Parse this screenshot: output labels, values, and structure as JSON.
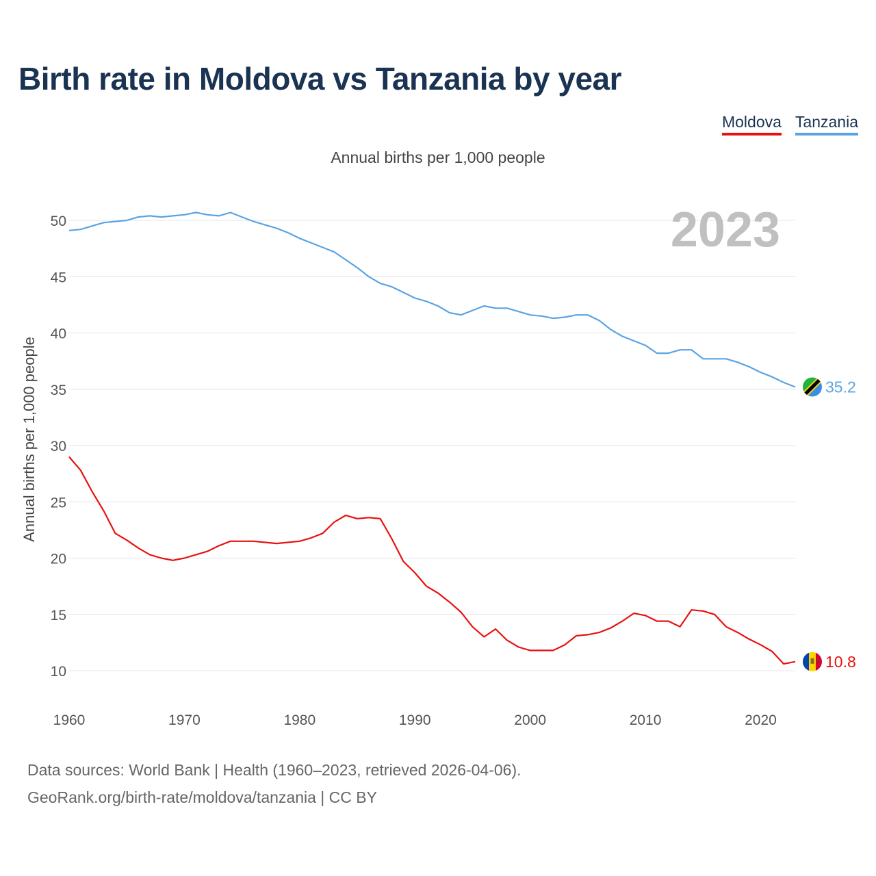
{
  "title": "Birth rate in Moldova vs Tanzania by year",
  "legend": {
    "moldova": "Moldova",
    "tanzania": "Tanzania"
  },
  "subtitle": "Annual births per 1,000 people",
  "footer": {
    "line1": "Data sources: World Bank | Health (1960–2023, retrieved 2026-04-06).",
    "line2": "GeoRank.org/birth-rate/moldova/tanzania | CC BY"
  },
  "chart_data": {
    "type": "line",
    "title": "Birth rate in Moldova vs Tanzania by year",
    "ylabel": "Annual births per 1,000 people",
    "xlabel": "",
    "year_label": "2023",
    "xlim": [
      1960,
      2023
    ],
    "ylim": [
      7,
      53
    ],
    "xticks": [
      1960,
      1970,
      1980,
      1990,
      2000,
      2010,
      2020
    ],
    "yticks": [
      10,
      15,
      20,
      25,
      30,
      35,
      40,
      45,
      50
    ],
    "grid": true,
    "x": [
      1960,
      1961,
      1962,
      1963,
      1964,
      1965,
      1966,
      1967,
      1968,
      1969,
      1970,
      1971,
      1972,
      1973,
      1974,
      1975,
      1976,
      1977,
      1978,
      1979,
      1980,
      1981,
      1982,
      1983,
      1984,
      1985,
      1986,
      1987,
      1988,
      1989,
      1990,
      1991,
      1992,
      1993,
      1994,
      1995,
      1996,
      1997,
      1998,
      1999,
      2000,
      2001,
      2002,
      2003,
      2004,
      2005,
      2006,
      2007,
      2008,
      2009,
      2010,
      2011,
      2012,
      2013,
      2014,
      2015,
      2016,
      2017,
      2018,
      2019,
      2020,
      2021,
      2022,
      2023
    ],
    "series": [
      {
        "name": "Tanzania",
        "color": "#5aa3e3",
        "end_label": "35.2",
        "values": [
          49.1,
          49.2,
          49.5,
          49.8,
          49.9,
          50.0,
          50.3,
          50.4,
          50.3,
          50.4,
          50.5,
          50.7,
          50.5,
          50.4,
          50.7,
          50.3,
          49.9,
          49.6,
          49.3,
          48.9,
          48.4,
          48.0,
          47.6,
          47.2,
          46.5,
          45.8,
          45.0,
          44.4,
          44.1,
          43.6,
          43.1,
          42.8,
          42.4,
          41.8,
          41.6,
          42.0,
          42.4,
          42.2,
          42.2,
          41.9,
          41.6,
          41.5,
          41.3,
          41.4,
          41.6,
          41.6,
          41.1,
          40.3,
          39.7,
          39.3,
          38.9,
          38.2,
          38.2,
          38.5,
          38.5,
          37.7,
          37.7,
          37.7,
          37.4,
          37.0,
          36.5,
          36.1,
          35.6,
          35.2
        ]
      },
      {
        "name": "Moldova",
        "color": "#e8110f",
        "end_label": "10.8",
        "values": [
          29.0,
          27.8,
          25.9,
          24.2,
          22.2,
          21.6,
          20.9,
          20.3,
          20.0,
          19.8,
          20.0,
          20.3,
          20.6,
          21.1,
          21.5,
          21.5,
          21.5,
          21.4,
          21.3,
          21.4,
          21.5,
          21.8,
          22.2,
          23.2,
          23.8,
          23.5,
          23.6,
          23.5,
          21.7,
          19.7,
          18.7,
          17.5,
          16.9,
          16.1,
          15.2,
          13.9,
          13.0,
          13.7,
          12.7,
          12.1,
          11.8,
          11.8,
          11.8,
          12.3,
          13.1,
          13.2,
          13.4,
          13.8,
          14.4,
          15.1,
          14.9,
          14.4,
          14.4,
          13.9,
          15.4,
          15.3,
          15.0,
          13.9,
          13.4,
          12.8,
          12.3,
          11.7,
          10.6,
          10.8
        ]
      }
    ]
  }
}
